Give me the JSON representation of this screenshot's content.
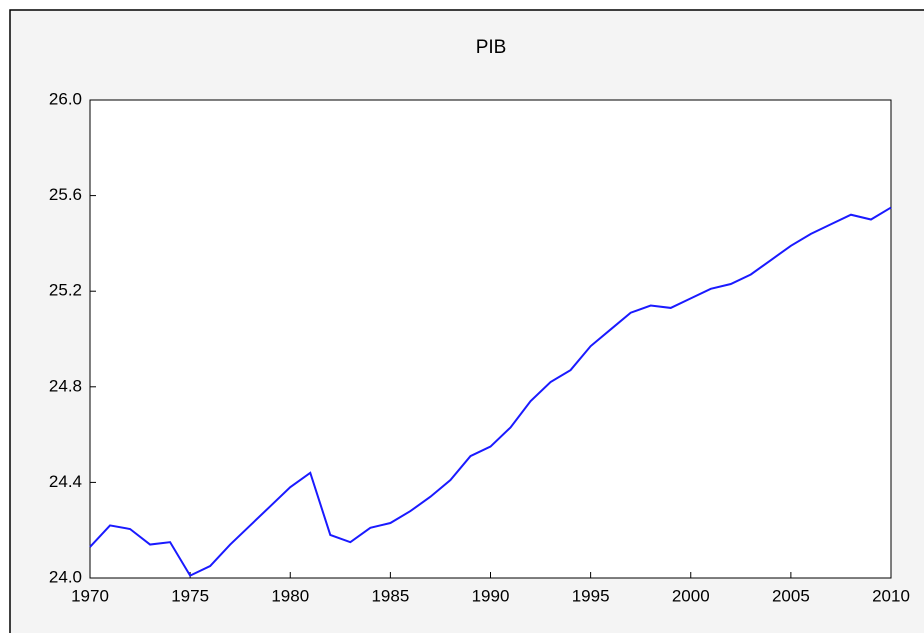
{
  "chart_data": {
    "type": "line",
    "title": "PIB",
    "x": [
      1970,
      1971,
      1972,
      1973,
      1974,
      1975,
      1976,
      1977,
      1978,
      1979,
      1980,
      1981,
      1982,
      1983,
      1984,
      1985,
      1986,
      1987,
      1988,
      1989,
      1990,
      1991,
      1992,
      1993,
      1994,
      1995,
      1996,
      1997,
      1998,
      1999,
      2000,
      2001,
      2002,
      2003,
      2004,
      2005,
      2006,
      2007,
      2008,
      2009,
      2010
    ],
    "series": [
      {
        "name": "PIB",
        "color": "#1a1aff",
        "values": [
          24.13,
          24.22,
          24.205,
          24.14,
          24.15,
          24.01,
          24.05,
          24.14,
          24.22,
          24.3,
          24.38,
          24.44,
          24.18,
          24.15,
          24.21,
          24.23,
          24.28,
          24.34,
          24.41,
          24.51,
          24.55,
          24.63,
          24.74,
          24.82,
          24.87,
          24.97,
          25.04,
          25.11,
          25.14,
          25.13,
          25.17,
          25.21,
          25.23,
          25.27,
          25.33,
          25.39,
          25.44,
          25.48,
          25.52,
          25.5,
          25.55
        ]
      }
    ],
    "xlim": [
      1970,
      2010
    ],
    "xticks": [
      1970,
      1975,
      1980,
      1985,
      1990,
      1995,
      2000,
      2005,
      2010
    ],
    "ylim": [
      24.0,
      26.0
    ],
    "yticks": [
      {
        "value": 24.0,
        "label": "24.0"
      },
      24.4,
      24.8,
      25.2,
      25.6,
      {
        "value": 26.0,
        "label": "26.0"
      }
    ]
  }
}
